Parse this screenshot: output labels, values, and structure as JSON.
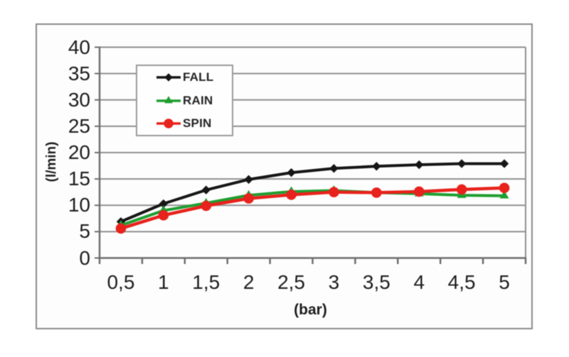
{
  "figure": {
    "background_color": "#ffffff",
    "frame_border_color": "#8a8a8a",
    "gridline_color": "#8f8f8f",
    "axis_line_color": "#6e6e6e",
    "text_color": "#1d1d1d"
  },
  "chart_data": {
    "type": "line",
    "title": "",
    "xlabel": "(bar)",
    "ylabel": "(l/min)",
    "x_categories": [
      "0,5",
      "1",
      "1,5",
      "2",
      "2,5",
      "3",
      "3,5",
      "4",
      "4,5",
      "5"
    ],
    "x_numeric_values": [
      0.5,
      1,
      1.5,
      2,
      2.5,
      3,
      3.5,
      4,
      4.5,
      5
    ],
    "ytick_labels": [
      "40",
      "35",
      "30",
      "25",
      "20",
      "15",
      "10",
      "5",
      "0"
    ],
    "ylim": [
      0,
      40
    ],
    "grid": "horizontal",
    "legend_position": "inside-top-left",
    "series": [
      {
        "name": "FALL",
        "color": "#161616",
        "marker": "diamond",
        "line_width": 4,
        "values": [
          6.9,
          10.3,
          12.9,
          14.9,
          16.2,
          17.0,
          17.4,
          17.7,
          17.9,
          17.9
        ]
      },
      {
        "name": "RAIN",
        "color": "#1e9e30",
        "marker": "triangle",
        "line_width": 4,
        "values": [
          6.2,
          9.0,
          10.4,
          11.9,
          12.6,
          12.8,
          12.4,
          12.2,
          11.9,
          11.8
        ]
      },
      {
        "name": "SPIN",
        "color": "#e8221c",
        "marker": "circle",
        "line_width": 4.5,
        "values": [
          5.6,
          8.1,
          9.9,
          11.3,
          12.0,
          12.5,
          12.4,
          12.6,
          13.0,
          13.3
        ]
      }
    ]
  }
}
